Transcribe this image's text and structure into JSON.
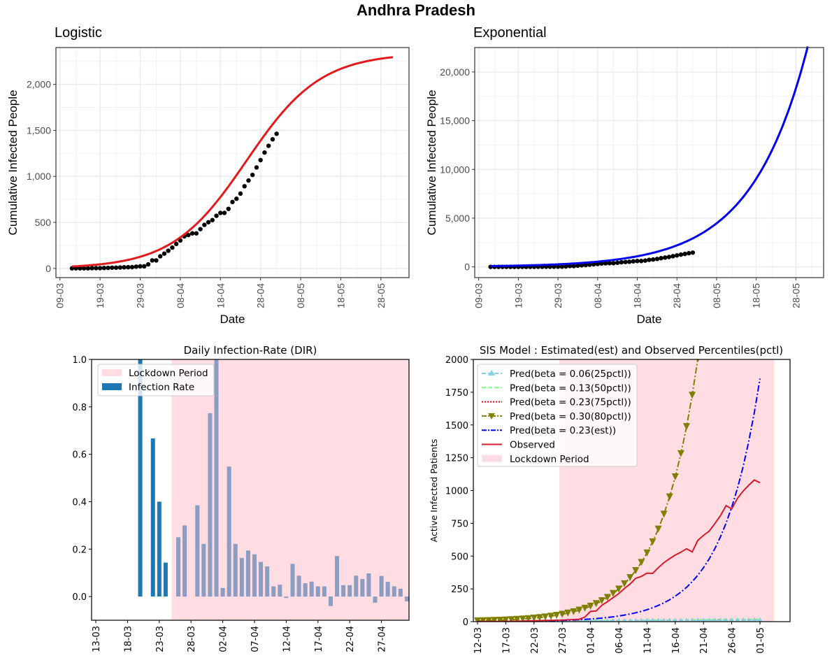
{
  "figure": {
    "title": "Andhra Pradesh"
  },
  "chart_data": [
    {
      "id": "logistic",
      "type": "scatter",
      "title": "Logistic",
      "xlabel": "Date",
      "ylabel": "Cumulative Infected People",
      "x_ticks": [
        "09-03",
        "19-03",
        "29-03",
        "08-04",
        "18-04",
        "28-04",
        "08-05",
        "18-05",
        "28-05"
      ],
      "y_ticks": [
        "0",
        "500",
        "1,000",
        "1,500",
        "2,000"
      ],
      "y_tick_values": [
        0,
        500,
        1000,
        1500,
        2000
      ],
      "ylim": [
        -100,
        2400
      ],
      "x_day_range": [
        -1,
        87
      ],
      "grid": true,
      "observed_color": "#000000",
      "fit_color": "#e31a1c",
      "observed": {
        "start_day": 3,
        "values": [
          1,
          1,
          1,
          1,
          1,
          3,
          3,
          3,
          5,
          6,
          8,
          8,
          10,
          12,
          13,
          14,
          19,
          23,
          23,
          44,
          87,
          87,
          132,
          161,
          192,
          226,
          266,
          304,
          348,
          363,
          381,
          381,
          427,
          473,
          502,
          525,
          572,
          603,
          603,
          647,
          722,
          757,
          813,
          893,
          955,
          1016,
          1097,
          1177,
          1259,
          1332,
          1403,
          1463
        ]
      },
      "fit": {
        "model": "logistic",
        "K": 2340,
        "r": 0.108,
        "t0_day": 46.5,
        "start_day": 3,
        "end_day": 83
      }
    },
    {
      "id": "exponential",
      "type": "scatter",
      "title": "Exponential",
      "xlabel": "Date",
      "ylabel": "Cumulative Infected People",
      "x_ticks": [
        "09-03",
        "19-03",
        "29-03",
        "08-04",
        "18-04",
        "28-04",
        "08-05",
        "18-05",
        "28-05"
      ],
      "y_ticks": [
        "0",
        "5,000",
        "10,000",
        "15,000",
        "20,000"
      ],
      "y_tick_values": [
        0,
        5000,
        10000,
        15000,
        20000
      ],
      "ylim": [
        -1100,
        22500
      ],
      "x_day_range": [
        -1,
        87
      ],
      "grid": true,
      "observed_color": "#000000",
      "fit_color": "#0000ee",
      "fit": {
        "model": "exponential",
        "a": 65,
        "b": 0.0705,
        "start_day": 3,
        "end_day": 83
      }
    },
    {
      "id": "dir",
      "type": "bar",
      "title": "Daily Infection-Rate (DIR)",
      "x_ticks": [
        "13-03",
        "18-03",
        "23-03",
        "28-03",
        "02-04",
        "07-04",
        "12-04",
        "17-04",
        "22-04",
        "27-04"
      ],
      "y_ticks": [
        "0.0",
        "0.2",
        "0.4",
        "0.6",
        "0.8",
        "1.0"
      ],
      "y_tick_values": [
        0,
        0.2,
        0.4,
        0.6,
        0.8,
        1.0
      ],
      "ylim": [
        -0.1,
        1.0
      ],
      "x_day_range": [
        -0.5,
        49.5
      ],
      "lockdown_start_day": 12,
      "legend": [
        {
          "label": "Lockdown Period",
          "color": "#ffdde3"
        },
        {
          "label": "Infection Rate",
          "color": "#1f77b4"
        }
      ],
      "legend_position": "upper-left",
      "pre_lockdown_color": "#1f77b4",
      "lockdown_bar_color": "#8c9dc2",
      "bars": [
        {
          "day": 7,
          "value": 1.0
        },
        {
          "day": 9,
          "value": 0.667
        },
        {
          "day": 10,
          "value": 0.4
        },
        {
          "day": 11,
          "value": 0.143
        },
        {
          "day": 13,
          "value": 0.25
        },
        {
          "day": 14,
          "value": 0.3
        },
        {
          "day": 16,
          "value": 0.385
        },
        {
          "day": 17,
          "value": 0.222
        },
        {
          "day": 18,
          "value": 0.773
        },
        {
          "day": 19,
          "value": 1.0
        },
        {
          "day": 20,
          "value": 0.036
        },
        {
          "day": 21,
          "value": 0.548
        },
        {
          "day": 22,
          "value": 0.222
        },
        {
          "day": 23,
          "value": 0.163
        },
        {
          "day": 24,
          "value": 0.194
        },
        {
          "day": 25,
          "value": 0.178
        },
        {
          "day": 26,
          "value": 0.146
        },
        {
          "day": 27,
          "value": 0.127
        },
        {
          "day": 28,
          "value": 0.043
        },
        {
          "day": 29,
          "value": 0.05
        },
        {
          "day": 30,
          "value": -0.006
        },
        {
          "day": 31,
          "value": 0.138
        },
        {
          "day": 32,
          "value": 0.088
        },
        {
          "day": 33,
          "value": 0.056
        },
        {
          "day": 34,
          "value": 0.063
        },
        {
          "day": 35,
          "value": 0.043
        },
        {
          "day": 36,
          "value": 0.043
        },
        {
          "day": 37,
          "value": -0.04
        },
        {
          "day": 38,
          "value": 0.171
        },
        {
          "day": 39,
          "value": 0.048
        },
        {
          "day": 40,
          "value": 0.048
        },
        {
          "day": 41,
          "value": 0.088
        },
        {
          "day": 42,
          "value": 0.074
        },
        {
          "day": 43,
          "value": 0.098
        },
        {
          "day": 44,
          "value": -0.026
        },
        {
          "day": 45,
          "value": 0.087
        },
        {
          "day": 46,
          "value": 0.062
        },
        {
          "day": 47,
          "value": 0.043
        },
        {
          "day": 48,
          "value": 0.033
        },
        {
          "day": 49,
          "value": -0.02
        }
      ]
    },
    {
      "id": "sis",
      "type": "line",
      "title": "SIS Model : Estimated(est) and Observed Percentiles(pctl)",
      "ylabel": "Active Infected Patients",
      "x_ticks": [
        "12-03",
        "17-03",
        "22-03",
        "27-03",
        "01-04",
        "06-04",
        "11-04",
        "16-04",
        "21-04",
        "26-04",
        "01-05"
      ],
      "y_ticks": [
        "0",
        "250",
        "500",
        "750",
        "1000",
        "1250",
        "1500",
        "1750",
        "2000"
      ],
      "y_tick_values": [
        0,
        250,
        500,
        750,
        1000,
        1250,
        1500,
        1750,
        2000
      ],
      "ylim": [
        0,
        2000
      ],
      "x_day_range": [
        -1.5,
        55.5
      ],
      "lockdown_days": [
        14.5,
        52.5
      ],
      "legend_position": "upper-left",
      "legend": [
        {
          "label": "Pred(beta = 0.06(25pctl))",
          "color": "#87ceeb",
          "style": "dashed-triangle-up"
        },
        {
          "label": "Pred(beta = 0.13(50pctl))",
          "color": "#7fff7f",
          "style": "dashed"
        },
        {
          "label": "Pred(beta = 0.23(75pctl))",
          "color": "#ff0000",
          "style": "dotted"
        },
        {
          "label": "Pred(beta = 0.30(80pctl))",
          "color": "#808000",
          "style": "dashdot-triangle-down"
        },
        {
          "label": "Pred(beta = 0.23(est))",
          "color": "#0000ff",
          "style": "dashdot"
        },
        {
          "label": "Observed",
          "color": "#d7192e",
          "style": "solid"
        },
        {
          "label": "Lockdown Period",
          "color": "#ffdde3",
          "style": "patch"
        }
      ],
      "series": [
        {
          "name": "Pred(beta = 0.06(25pctl))",
          "model": "flat",
          "start_day": 0,
          "end_day": 50,
          "value_start": 1,
          "value_end": 12
        },
        {
          "name": "Pred(beta = 0.13(50pctl))",
          "model": "flat",
          "start_day": 0,
          "end_day": 50,
          "value_start": 1,
          "value_end": 20
        },
        {
          "name": "Pred(beta = 0.30(80pctl))",
          "model": "exp",
          "start_day": 0,
          "end_day": 40,
          "a": 6.0,
          "b": 0.149
        },
        {
          "name": "Pred(beta = 0.23(est))",
          "model": "exp",
          "start_day": 0,
          "end_day": 50,
          "a": 1.0,
          "b": 0.1505
        },
        {
          "name": "Observed",
          "start_day": 0,
          "values": [
            1,
            1,
            1,
            1,
            1,
            2,
            3,
            3,
            5,
            6,
            7,
            8,
            9,
            10,
            11,
            12,
            14,
            16,
            18,
            35,
            78,
            81,
            125,
            152,
            183,
            214,
            253,
            287,
            330,
            345,
            370,
            368,
            412,
            450,
            480,
            508,
            530,
            556,
            532,
            620,
            658,
            690,
            748,
            808,
            885,
            860,
            940,
            995,
            1040,
            1080,
            1060
          ]
        }
      ]
    }
  ]
}
